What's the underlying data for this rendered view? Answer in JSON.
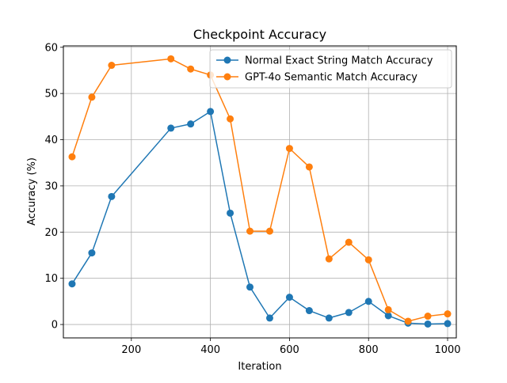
{
  "chart_data": {
    "type": "line",
    "title": "Checkpoint Accuracy",
    "xlabel": "Iteration",
    "ylabel": "Accuracy (%)",
    "xlim": [
      28,
      1022
    ],
    "ylim": [
      -2.9,
      60.3
    ],
    "xticks": [
      200,
      400,
      600,
      800,
      1000
    ],
    "yticks": [
      0,
      10,
      20,
      30,
      40,
      50,
      60
    ],
    "grid": true,
    "legend_position": "upper right",
    "series": [
      {
        "name": "Normal Exact String Match Accuracy",
        "color": "#1f77b4",
        "x": [
          50,
          100,
          150,
          300,
          350,
          400,
          450,
          500,
          550,
          600,
          650,
          700,
          750,
          800,
          850,
          900,
          950,
          1000
        ],
        "y": [
          8.8,
          15.5,
          27.7,
          42.5,
          43.4,
          46.1,
          24.1,
          8.1,
          1.4,
          5.9,
          3.0,
          1.4,
          2.6,
          5.0,
          1.9,
          0.3,
          0.1,
          0.2
        ]
      },
      {
        "name": "GPT-4o Semantic Match Accuracy",
        "color": "#ff7f0e",
        "x": [
          50,
          100,
          150,
          300,
          350,
          400,
          450,
          500,
          550,
          600,
          650,
          700,
          750,
          800,
          850,
          900,
          950,
          1000
        ],
        "y": [
          36.3,
          49.2,
          56.1,
          57.5,
          55.3,
          54.0,
          44.5,
          20.2,
          20.2,
          38.1,
          34.1,
          14.2,
          17.8,
          14.0,
          3.2,
          0.7,
          1.8,
          2.3
        ]
      }
    ]
  }
}
